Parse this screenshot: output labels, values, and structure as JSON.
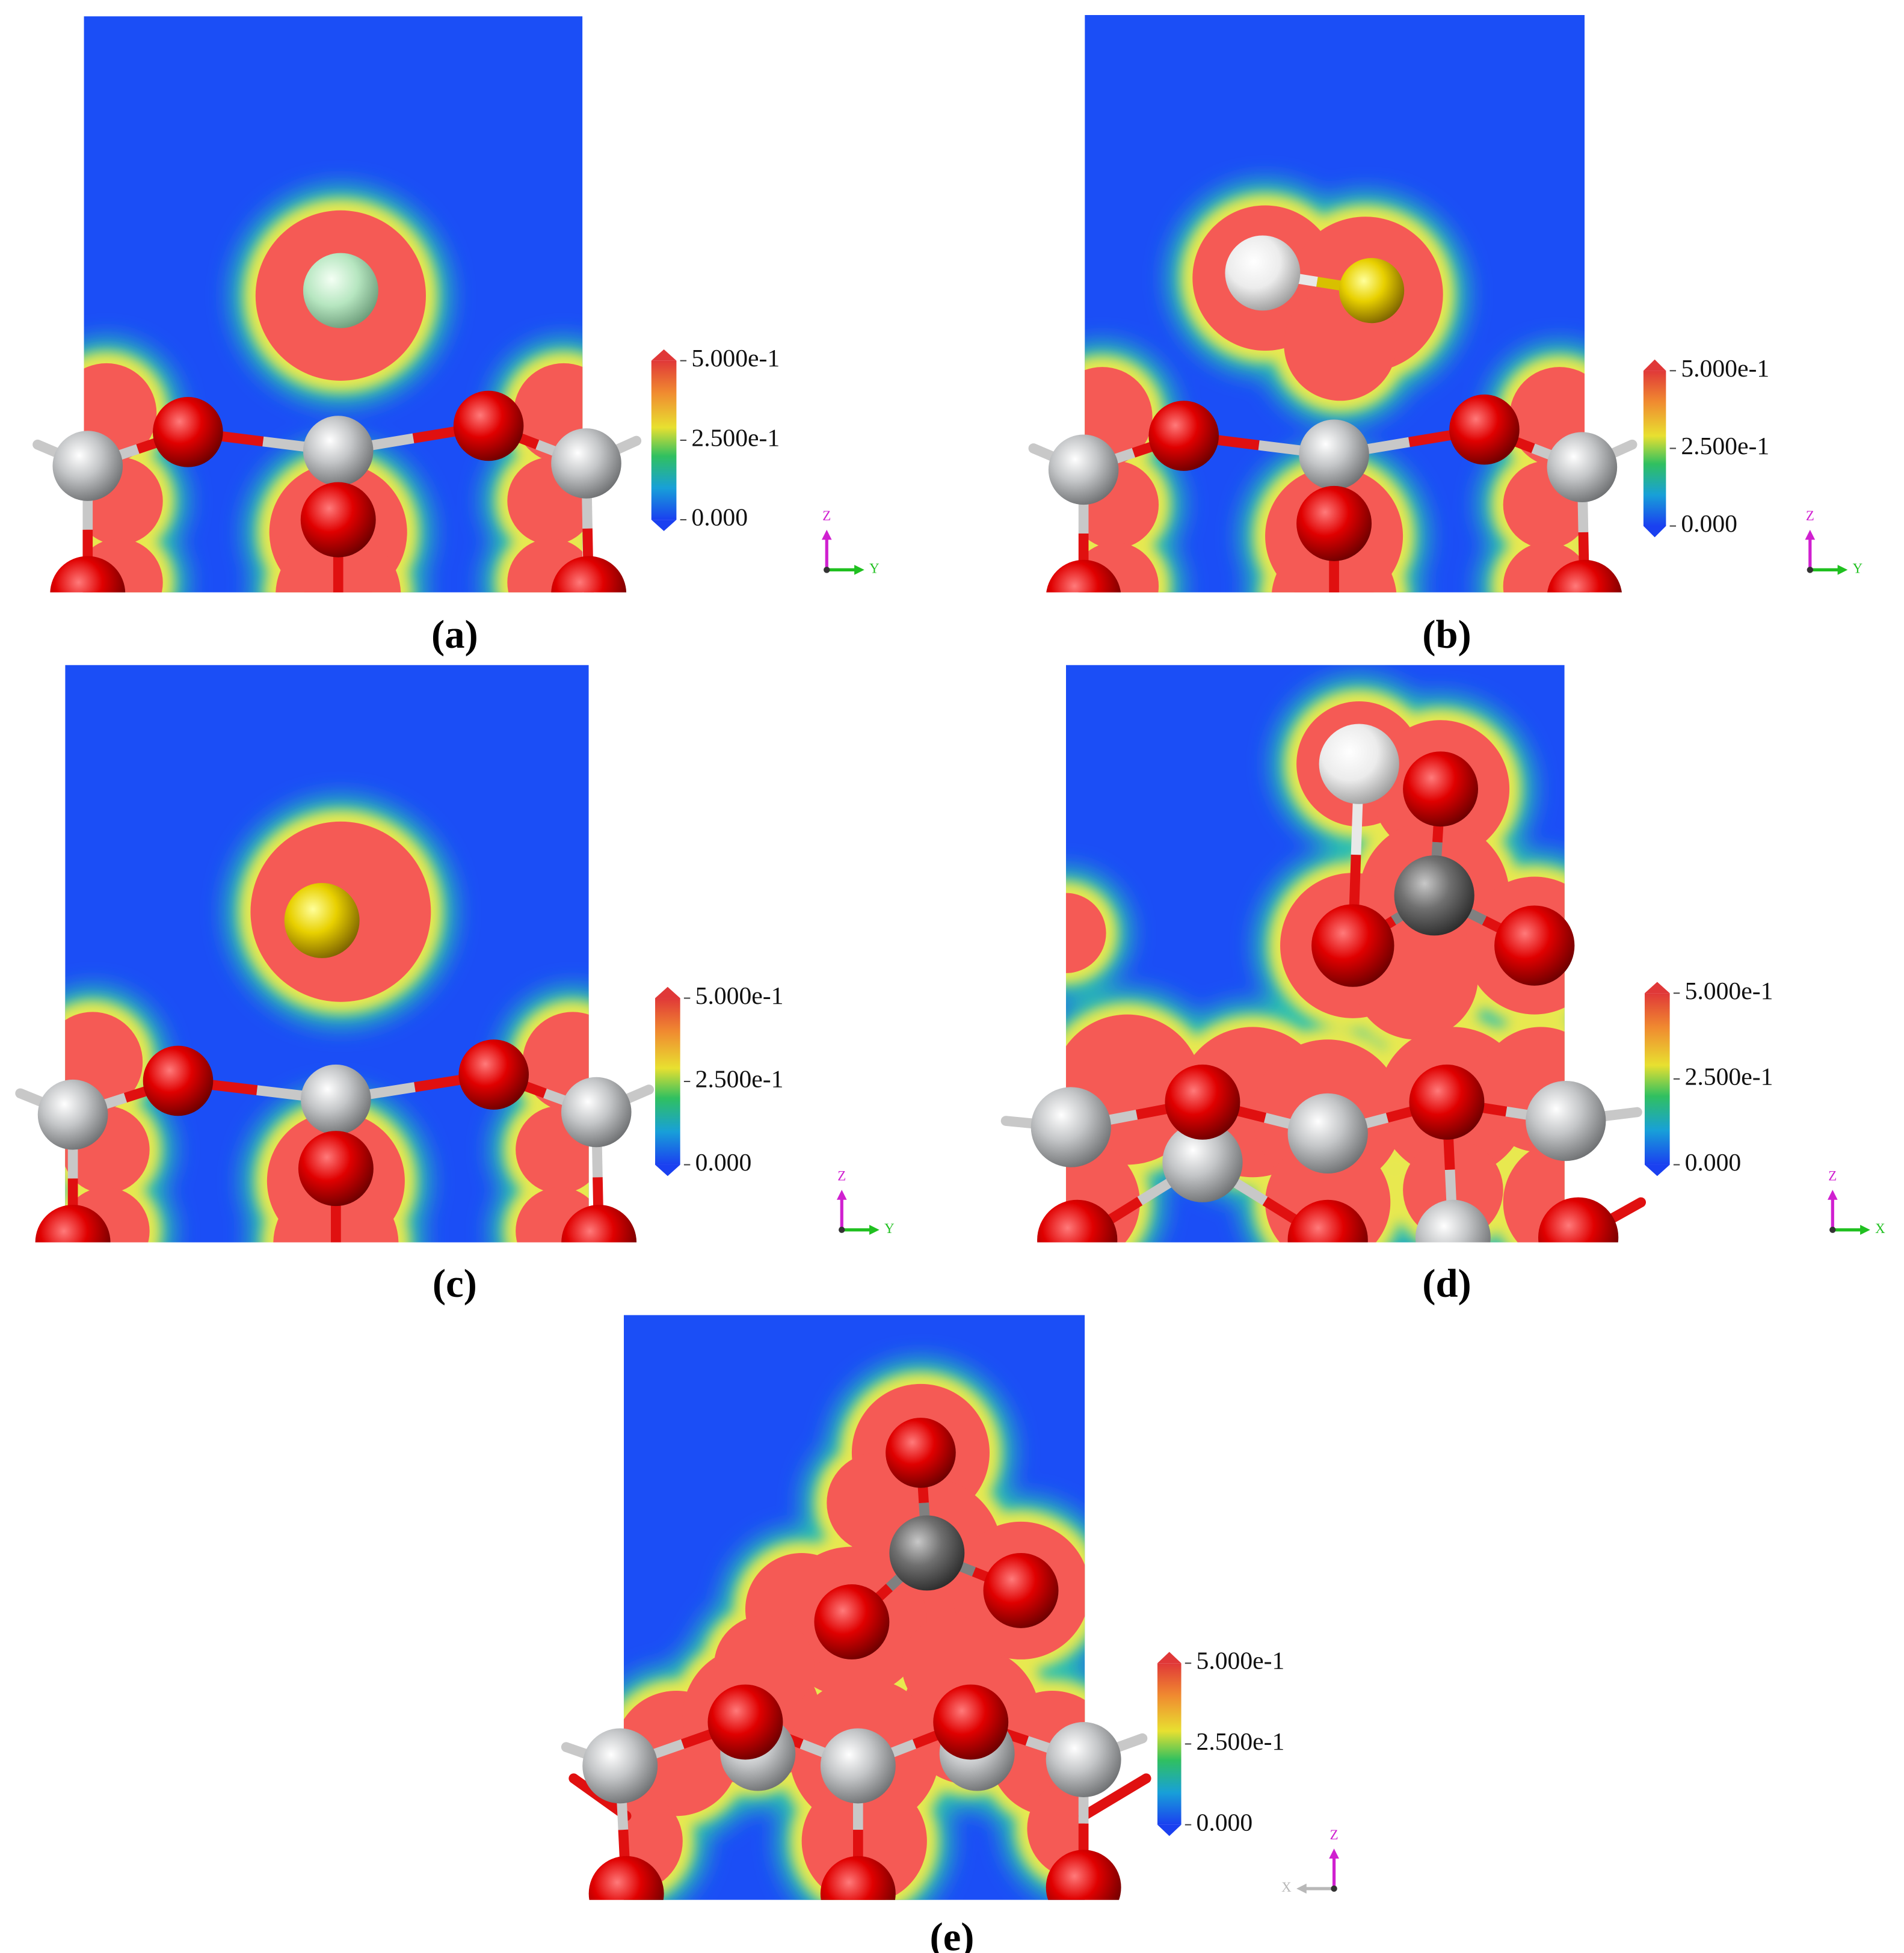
{
  "panels": [
    {
      "label": "(a)",
      "colorbar": {
        "max": "5.000e-1",
        "mid": "2.500e-1",
        "min": "0.000"
      },
      "axes": {
        "vertical": "Z",
        "horizontal": "Y"
      }
    },
    {
      "label": "(b)",
      "colorbar": {
        "max": "5.000e-1",
        "mid": "2.500e-1",
        "min": "0.000"
      },
      "axes": {
        "vertical": "Z",
        "horizontal": "Y"
      }
    },
    {
      "label": "(c)",
      "colorbar": {
        "max": "5.000e-1",
        "mid": "2.500e-1",
        "min": "0.000"
      },
      "axes": {
        "vertical": "Z",
        "horizontal": "Y"
      }
    },
    {
      "label": "(d)",
      "colorbar": {
        "max": "5.000e-1",
        "mid": "2.500e-1",
        "min": "0.000"
      },
      "axes": {
        "vertical": "Z",
        "horizontal": "X"
      }
    },
    {
      "label": "(e)",
      "colorbar": {
        "max": "5.000e-1",
        "mid": "2.500e-1",
        "min": "0.000"
      },
      "axes": {
        "vertical": "Z",
        "horizontal": "X"
      }
    }
  ]
}
